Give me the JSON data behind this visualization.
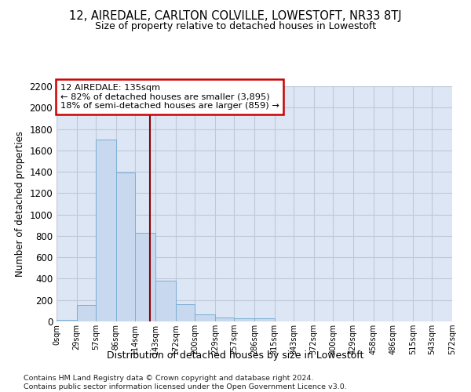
{
  "title": "12, AIREDALE, CARLTON COLVILLE, LOWESTOFT, NR33 8TJ",
  "subtitle": "Size of property relative to detached houses in Lowestoft",
  "xlabel": "Distribution of detached houses by size in Lowestoft",
  "ylabel": "Number of detached properties",
  "bar_color": "#c8d8ee",
  "bar_edge_color": "#7bafd4",
  "background_color": "#dce6f5",
  "grid_color": "#c0c8d8",
  "annotation_line_color": "#8b0000",
  "annotation_box_color": "white",
  "annotation_box_edge": "#cc0000",
  "annotation_text_line1": "12 AIREDALE: 135sqm",
  "annotation_text_line2": "← 82% of detached houses are smaller (3,895)",
  "annotation_text_line3": "18% of semi-detached houses are larger (859) →",
  "property_size": 135,
  "footer": "Contains HM Land Registry data © Crown copyright and database right 2024.\nContains public sector information licensed under the Open Government Licence v3.0.",
  "bins": [
    0,
    29,
    57,
    86,
    114,
    143,
    172,
    200,
    229,
    257,
    286,
    315,
    343,
    372,
    400,
    429,
    458,
    486,
    515,
    543,
    572
  ],
  "counts": [
    15,
    155,
    1700,
    1390,
    830,
    385,
    165,
    65,
    35,
    28,
    28,
    0,
    0,
    0,
    0,
    0,
    0,
    0,
    0,
    0
  ],
  "ylim": [
    0,
    2200
  ],
  "yticks": [
    0,
    200,
    400,
    600,
    800,
    1000,
    1200,
    1400,
    1600,
    1800,
    2000,
    2200
  ]
}
